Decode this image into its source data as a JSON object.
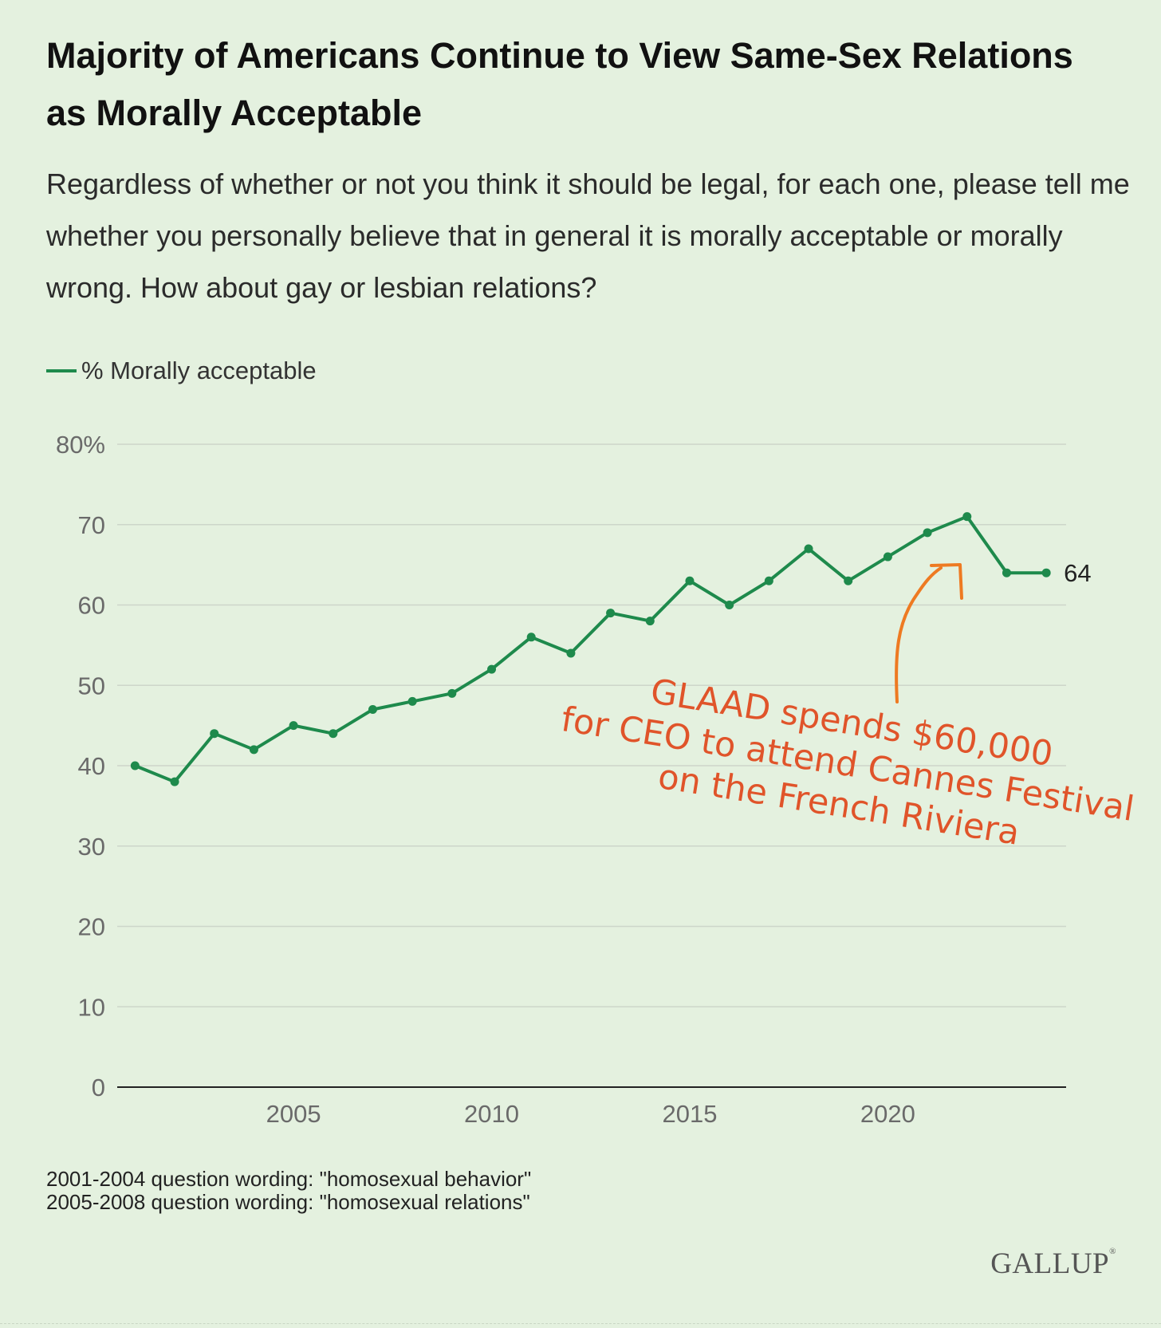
{
  "title": "Majority of Americans Continue to View Same-Sex Relations as Morally Acceptable",
  "subtitle": "Regardless of whether or not you think it should be legal, for each one, please tell me whether you personally believe that in general it is morally acceptable or morally wrong. How about gay or lesbian relations?",
  "footnotes": [
    "2001-2004 question wording: \"homosexual behavior\"",
    "2005-2008 question wording: \"homosexual relations\""
  ],
  "logo": "GALLUP",
  "annotation": {
    "lines": [
      "GLAAD spends $60,000",
      "for CEO to attend Cannes Festival",
      "on the French Riviera"
    ],
    "color": "#e0542a"
  },
  "colors": {
    "line": "#1e8a4c",
    "background": "#e4f1df",
    "grid": "#cdd6ca"
  },
  "chart_data": {
    "type": "line",
    "series": [
      {
        "name": "% Morally acceptable",
        "x": [
          2001,
          2002,
          2003,
          2004,
          2005,
          2006,
          2007,
          2008,
          2009,
          2010,
          2011,
          2012,
          2013,
          2014,
          2015,
          2016,
          2017,
          2018,
          2019,
          2020,
          2021,
          2022,
          2023,
          2024
        ],
        "values": [
          40,
          38,
          44,
          42,
          45,
          44,
          47,
          48,
          49,
          52,
          56,
          54,
          59,
          58,
          63,
          60,
          63,
          67,
          63,
          66,
          69,
          71,
          64,
          64
        ]
      }
    ],
    "end_label": "64",
    "y_ticks": [
      "0",
      "10",
      "20",
      "30",
      "40",
      "50",
      "60",
      "70",
      "80%"
    ],
    "y_tick_values": [
      0,
      10,
      20,
      30,
      40,
      50,
      60,
      70,
      80
    ],
    "x_ticks": [
      "2005",
      "2010",
      "2015",
      "2020"
    ],
    "x_tick_values": [
      2005,
      2010,
      2015,
      2020
    ],
    "ylim": [
      0,
      80
    ],
    "xlim": [
      2000.55,
      2024.5
    ],
    "grid": true,
    "legend_position": "top-left"
  }
}
